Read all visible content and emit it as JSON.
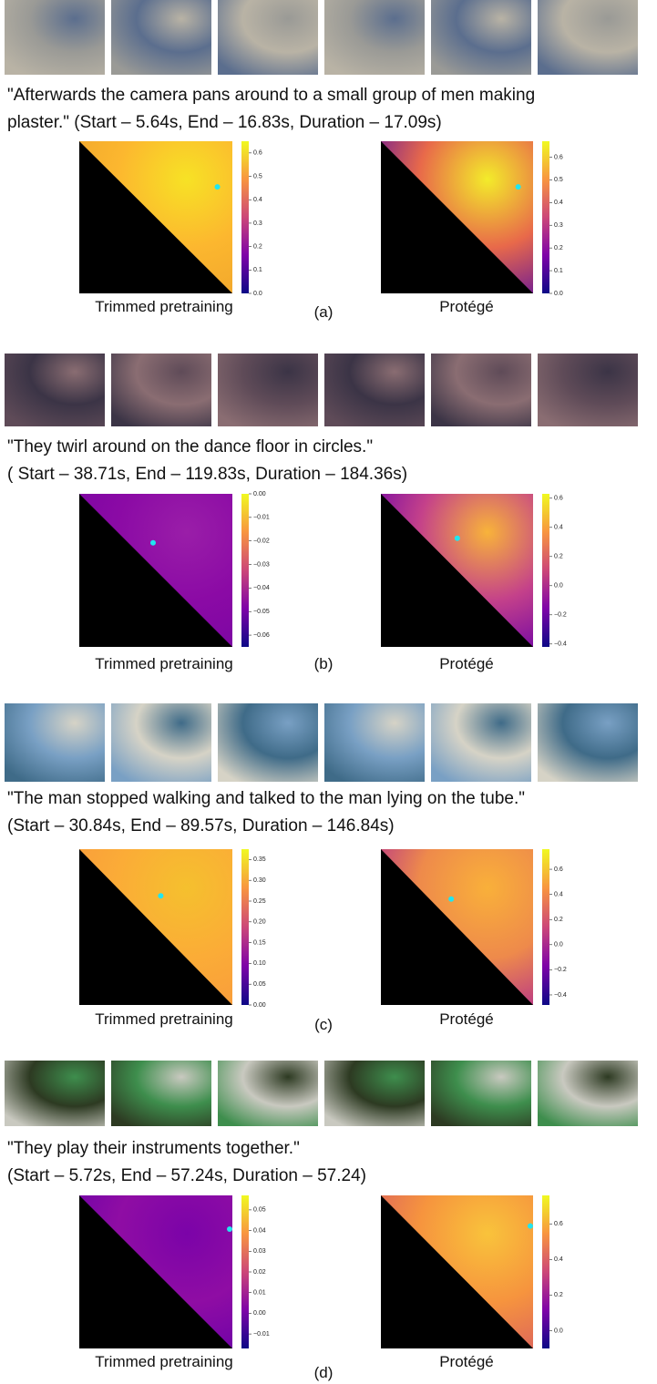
{
  "panels": [
    {
      "caption": [
        "\"Afterwards the camera pans around to a small group of men making",
        "plaster.\" (Start – 5.64s, End – 16.83s, Duration – 17.09s)"
      ],
      "label": "(a)",
      "heatmaps": [
        {
          "title": "Trimmed pretraining",
          "clim": [
            0,
            0.65
          ],
          "ticks": [
            {
              "value": 0,
              "label": "0.0"
            },
            0.1,
            0.2,
            0.3,
            0.4,
            0.5,
            0.6
          ]
        },
        {
          "title": "Protégé",
          "clim": [
            0,
            0.67
          ],
          "ticks": [
            {
              "value": 0,
              "label": "0.0"
            },
            0.1,
            0.2,
            0.3,
            0.4,
            0.5,
            0.6
          ]
        }
      ]
    },
    {
      "caption": [
        "\"They twirl around on the dance floor in circles.\"",
        "( Start – 38.71s, End – 119.83s, Duration – 184.36s)"
      ],
      "label": "(b)",
      "heatmaps": [
        {
          "title": "Trimmed pretraining",
          "clim": [
            -0.065,
            0
          ],
          "ticks": [
            {
              "value": 0,
              "label": "0.00"
            },
            {
              "value": -0.01,
              "label": "−0.01"
            },
            {
              "value": -0.02,
              "label": "−0.02"
            },
            {
              "value": -0.03,
              "label": "−0.03"
            },
            {
              "value": -0.04,
              "label": "−0.04"
            },
            {
              "value": -0.05,
              "label": "−0.05"
            },
            {
              "value": -0.06,
              "label": "−0.06"
            }
          ]
        },
        {
          "title": "Protégé",
          "clim": [
            -0.42,
            0.63
          ],
          "ticks": [
            {
              "value": -0.4,
              "label": "−0.4"
            },
            {
              "value": -0.2,
              "label": "−0.2"
            },
            {
              "value": 0,
              "label": "0.0"
            },
            0.2,
            0.4,
            0.6
          ]
        }
      ]
    },
    {
      "caption": [
        "\"The man stopped walking and talked to the man lying on the tube.\"",
        "(Start – 30.84s, End – 89.57s, Duration – 146.84s)"
      ],
      "label": "(c)",
      "heatmaps": [
        {
          "title": "Trimmed pretraining",
          "clim": [
            0,
            0.375
          ],
          "ticks": [
            {
              "value": 0,
              "label": "0.00"
            },
            0.05,
            {
              "value": 0.1,
              "label": "0.10"
            },
            0.15,
            {
              "value": 0.2,
              "label": "0.20"
            },
            0.25,
            {
              "value": 0.3,
              "label": "0.30"
            },
            0.35
          ]
        },
        {
          "title": "Protégé",
          "clim": [
            -0.48,
            0.76
          ],
          "ticks": [
            {
              "value": -0.4,
              "label": "−0.4"
            },
            {
              "value": -0.2,
              "label": "−0.2"
            },
            {
              "value": 0,
              "label": "0.0"
            },
            0.2,
            0.4,
            0.6
          ]
        }
      ]
    },
    {
      "caption": [
        "\"They play their instruments together.\"",
        "(Start – 5.72s, End – 57.24s, Duration –  57.24)"
      ],
      "label": "(d)",
      "heatmaps": [
        {
          "title": "Trimmed pretraining",
          "clim": [
            -0.017,
            0.057
          ],
          "ticks": [
            {
              "value": -0.01,
              "label": "−0.01"
            },
            {
              "value": 0,
              "label": "0.00"
            },
            0.01,
            0.02,
            0.03,
            0.04,
            0.05
          ]
        },
        {
          "title": "Protégé",
          "clim": [
            -0.1,
            0.76
          ],
          "ticks": [
            {
              "value": 0,
              "label": "0.0"
            },
            0.2,
            0.4,
            0.6
          ]
        }
      ]
    }
  ]
}
